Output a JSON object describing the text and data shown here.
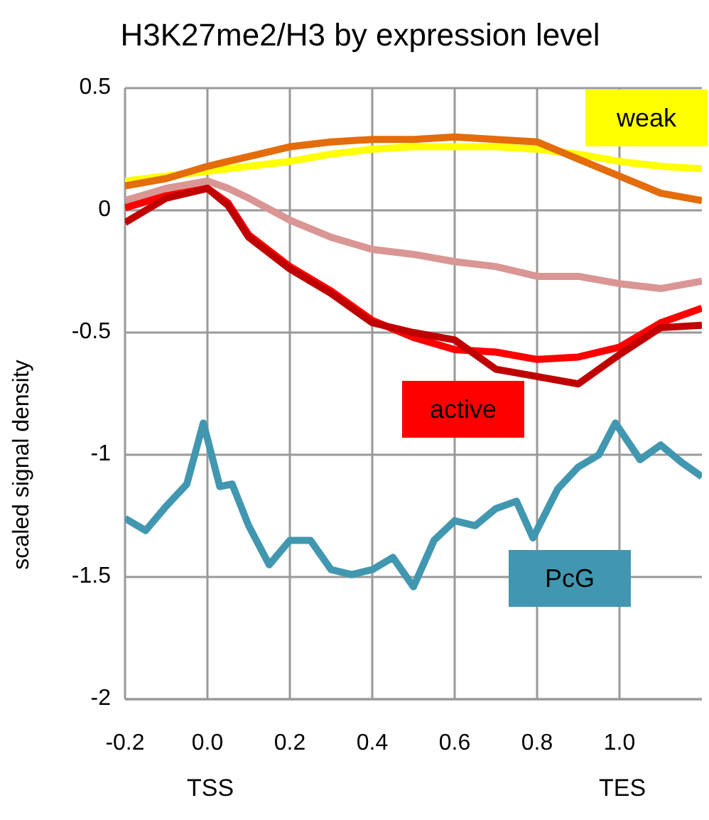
{
  "chart_data": {
    "type": "line",
    "title": "H3K27me2/H3 by expression level",
    "ylabel": "scaled signal density",
    "x": [
      -0.2,
      -0.1,
      0,
      0.05,
      0.1,
      0.2,
      0.3,
      0.4,
      0.5,
      0.6,
      0.7,
      0.8,
      0.9,
      1.0,
      1.1,
      1.2
    ],
    "series": [
      {
        "name": "weak",
        "color": "#ffff00",
        "values": [
          0.12,
          0.14,
          0.16,
          0.17,
          0.18,
          0.2,
          0.23,
          0.25,
          0.26,
          0.26,
          0.26,
          0.25,
          0.23,
          0.2,
          0.18,
          0.17
        ]
      },
      {
        "color": "#e46c0a",
        "values": [
          0.1,
          0.13,
          0.18,
          0.2,
          0.22,
          0.26,
          0.28,
          0.29,
          0.29,
          0.3,
          0.29,
          0.28,
          0.21,
          0.14,
          0.07,
          0.04
        ]
      },
      {
        "color": "#d99694",
        "values": [
          0.04,
          0.09,
          0.12,
          0.09,
          0.05,
          -0.04,
          -0.11,
          -0.16,
          -0.18,
          -0.21,
          -0.23,
          -0.27,
          -0.27,
          -0.3,
          -0.32,
          -0.29
        ]
      },
      {
        "name": "active",
        "color": "#ff0000",
        "values": [
          0.01,
          0.06,
          0.09,
          0.03,
          -0.1,
          -0.23,
          -0.33,
          -0.45,
          -0.52,
          -0.57,
          -0.58,
          -0.61,
          -0.6,
          -0.56,
          -0.46,
          -0.4
        ]
      },
      {
        "color": "#c00000",
        "values": [
          -0.05,
          0.05,
          0.09,
          0.02,
          -0.11,
          -0.24,
          -0.34,
          -0.46,
          -0.5,
          -0.53,
          -0.65,
          -0.68,
          -0.71,
          -0.59,
          -0.48,
          -0.47
        ]
      },
      {
        "name": "PcG",
        "color": "#4197b0",
        "x": [
          -0.2,
          -0.15,
          -0.1,
          -0.05,
          -0.01,
          0.03,
          0.06,
          0.1,
          0.15,
          0.2,
          0.25,
          0.3,
          0.35,
          0.4,
          0.45,
          0.5,
          0.55,
          0.6,
          0.65,
          0.7,
          0.75,
          0.79,
          0.85,
          0.9,
          0.95,
          0.99,
          1.05,
          1.1,
          1.15,
          1.2
        ],
        "values": [
          -1.26,
          -1.31,
          -1.21,
          -1.12,
          -0.87,
          -1.13,
          -1.12,
          -1.29,
          -1.45,
          -1.35,
          -1.35,
          -1.47,
          -1.49,
          -1.47,
          -1.42,
          -1.54,
          -1.35,
          -1.27,
          -1.29,
          -1.22,
          -1.19,
          -1.34,
          -1.14,
          -1.05,
          -1.0,
          -0.87,
          -1.02,
          -0.96,
          -1.03,
          -1.09
        ]
      }
    ],
    "xlim": [
      -0.2,
      1.2
    ],
    "xticks": [
      -0.2,
      {
        "value": 0,
        "label": "0.0"
      },
      0.2,
      0.4,
      0.6,
      0.8,
      {
        "value": 1,
        "label": "1.0"
      }
    ],
    "ylim": [
      -2,
      0.5
    ],
    "yticks": [
      -2,
      -1.5,
      -1,
      -0.5,
      0,
      0.5
    ],
    "grid": true,
    "legend": false,
    "annotations": [
      "TSS",
      "TES"
    ]
  }
}
